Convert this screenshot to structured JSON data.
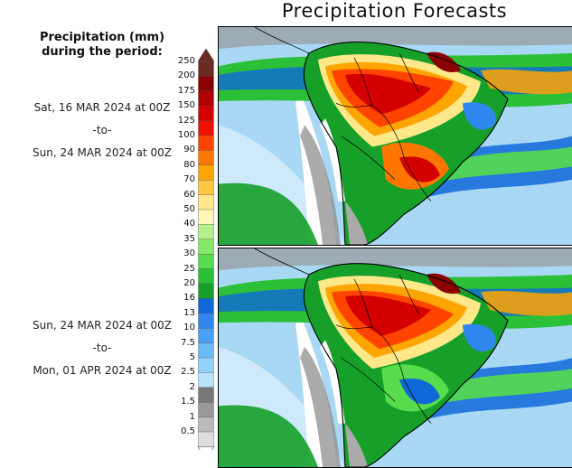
{
  "title": "Precipitation Forecasts",
  "legend": {
    "title_line1": "Precipitation (mm)",
    "title_line2": "during the period:",
    "units": "mm",
    "levels": [
      "250",
      "200",
      "175",
      "150",
      "125",
      "100",
      "90",
      "80",
      "70",
      "60",
      "50",
      "40",
      "35",
      "30",
      "25",
      "20",
      "16",
      "13",
      "10",
      "7.5",
      "5",
      "2.5",
      "2",
      "1.5",
      "1",
      "0.5"
    ],
    "colors": [
      "#6b2a22",
      "#8b0000",
      "#b00000",
      "#d40000",
      "#ee1100",
      "#ff4400",
      "#ff7700",
      "#ffa500",
      "#ffc840",
      "#ffe88a",
      "#fff6b8",
      "#b4f08c",
      "#86e868",
      "#56dc4c",
      "#2cc038",
      "#16a02a",
      "#1068d8",
      "#2f86ee",
      "#4aa0f6",
      "#6ebafa",
      "#92d2fc",
      "#b8e4fc",
      "#777777",
      "#999999",
      "#bbbbbb",
      "#dddddd"
    ]
  },
  "periods": [
    {
      "start": "Sat, 16 MAR 2024 at 00Z",
      "sep": "-to-",
      "end": "Sun, 24 MAR 2024 at 00Z"
    },
    {
      "start": "Sun, 24 MAR 2024 at 00Z",
      "sep": "-to-",
      "end": "Mon, 01 APR 2024 at 00Z"
    }
  ],
  "maps": [
    {
      "region": "South America",
      "ocean_color": "#a8d8f4",
      "dry_color": "#ffffff"
    },
    {
      "region": "South America",
      "ocean_color": "#a8d8f4",
      "dry_color": "#ffffff"
    }
  ]
}
